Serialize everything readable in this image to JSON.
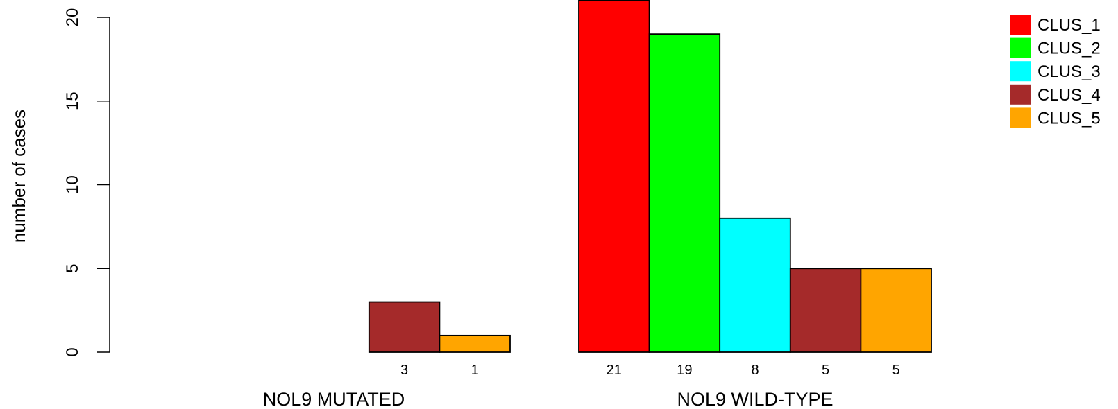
{
  "chart_data": {
    "type": "bar",
    "ylabel": "number of cases",
    "ylim": [
      0,
      20
    ],
    "yticks": [
      0,
      5,
      10,
      15,
      20
    ],
    "grid": false,
    "legend_position": "top-right",
    "groups": [
      {
        "label": "NOL9 MUTATED",
        "values": [
          0,
          0,
          0,
          3,
          1
        ],
        "value_labels": [
          "",
          "",
          "",
          "3",
          "1"
        ]
      },
      {
        "label": "NOL9 WILD-TYPE",
        "values": [
          21,
          19,
          8,
          5,
          5
        ],
        "value_labels": [
          "21",
          "19",
          "8",
          "5",
          "5"
        ]
      }
    ],
    "series": [
      {
        "name": "CLUS_1",
        "color": "#ff0000"
      },
      {
        "name": "CLUS_2",
        "color": "#00ff00"
      },
      {
        "name": "CLUS_3",
        "color": "#00ffff"
      },
      {
        "name": "CLUS_4",
        "color": "#a52a2a"
      },
      {
        "name": "CLUS_5",
        "color": "#ffa500"
      }
    ]
  }
}
